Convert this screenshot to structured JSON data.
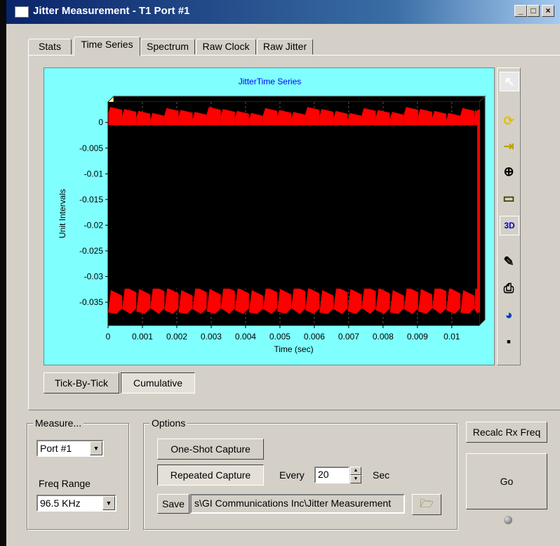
{
  "window": {
    "title": "Jitter Measurement - T1 Port #1",
    "controls": {
      "minimize": "_",
      "maximize": "□",
      "close": "×"
    }
  },
  "tabs": [
    {
      "label": "Stats",
      "active": false
    },
    {
      "label": "Time Series",
      "active": true
    },
    {
      "label": "Spectrum",
      "active": false
    },
    {
      "label": "Raw Clock",
      "active": false
    },
    {
      "label": "Raw Jitter",
      "active": false
    }
  ],
  "chart_data": {
    "type": "line",
    "title": "JitterTime Series",
    "xlabel": "Time (sec)",
    "ylabel": "Unit Intervals",
    "xlim": [
      0,
      0.0108
    ],
    "ylim": [
      -0.0395,
      0.004
    ],
    "x_ticks": [
      "0",
      "0.001",
      "0.002",
      "0.003",
      "0.004",
      "0.005",
      "0.006",
      "0.007",
      "0.008",
      "0.009",
      "0.01"
    ],
    "y_ticks": [
      "0",
      "-0.005",
      "-0.01",
      "-0.015",
      "-0.02",
      "-0.025",
      "-0.03",
      "-0.035"
    ],
    "grid": true,
    "legend": "none",
    "series": [
      {
        "color": "#ff0000",
        "y_band": [
          -0.037,
          0.003
        ],
        "period_sec": 0.00041
      }
    ],
    "colors": {
      "background": "#80ffff",
      "plot_area": "#000000",
      "series": "#ff0000",
      "title": "#0000ff"
    }
  },
  "toolbar": {
    "icons": [
      "pointer-icon",
      "rotate-icon",
      "axis-icon",
      "zoom-in-icon",
      "page-icon",
      "3d-icon",
      "properties-icon",
      "print-icon",
      "chart-wizard-icon",
      "save-icon"
    ],
    "label_3d": "3D"
  },
  "view_buttons": {
    "tick": "Tick-By-Tick",
    "cumulative": "Cumulative"
  },
  "measure": {
    "label": "Measure...",
    "port_value": "Port #1",
    "freq_label": "Freq Range",
    "freq_value": "96.5 KHz"
  },
  "options": {
    "label": "Options",
    "one_shot": "One-Shot Capture",
    "repeated": "Repeated Capture",
    "every_label": "Every",
    "every_value": "20",
    "sec_label": "Sec",
    "save_label": "Save",
    "path_value": "s\\GI Communications Inc\\Jitter Measurement"
  },
  "actions": {
    "recalc": "Recalc Rx Freq",
    "go": "Go"
  }
}
